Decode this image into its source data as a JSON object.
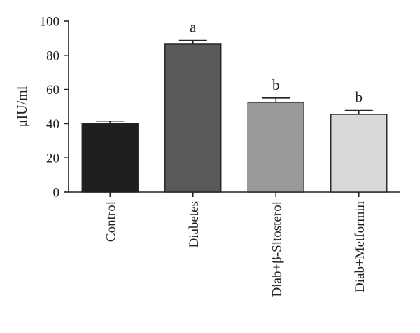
{
  "chart_data": {
    "type": "bar",
    "title": "",
    "xlabel": "",
    "ylabel": "μIU/ml",
    "ylim": [
      0,
      100
    ],
    "yticks": [
      0,
      20,
      40,
      60,
      80,
      100
    ],
    "grid": false,
    "categories": [
      "Control",
      "Diabetes",
      "Diab+β-Sitosterol",
      "Diab+Metformin"
    ],
    "values": [
      40,
      86.5,
      52.5,
      45.5
    ],
    "errors": [
      1.5,
      2.2,
      2.5,
      2.2
    ],
    "annotations": [
      "",
      "a",
      "b",
      "b"
    ],
    "colors": [
      "#1f1f1f",
      "#595959",
      "#9a9a9a",
      "#d9d9d9"
    ]
  }
}
